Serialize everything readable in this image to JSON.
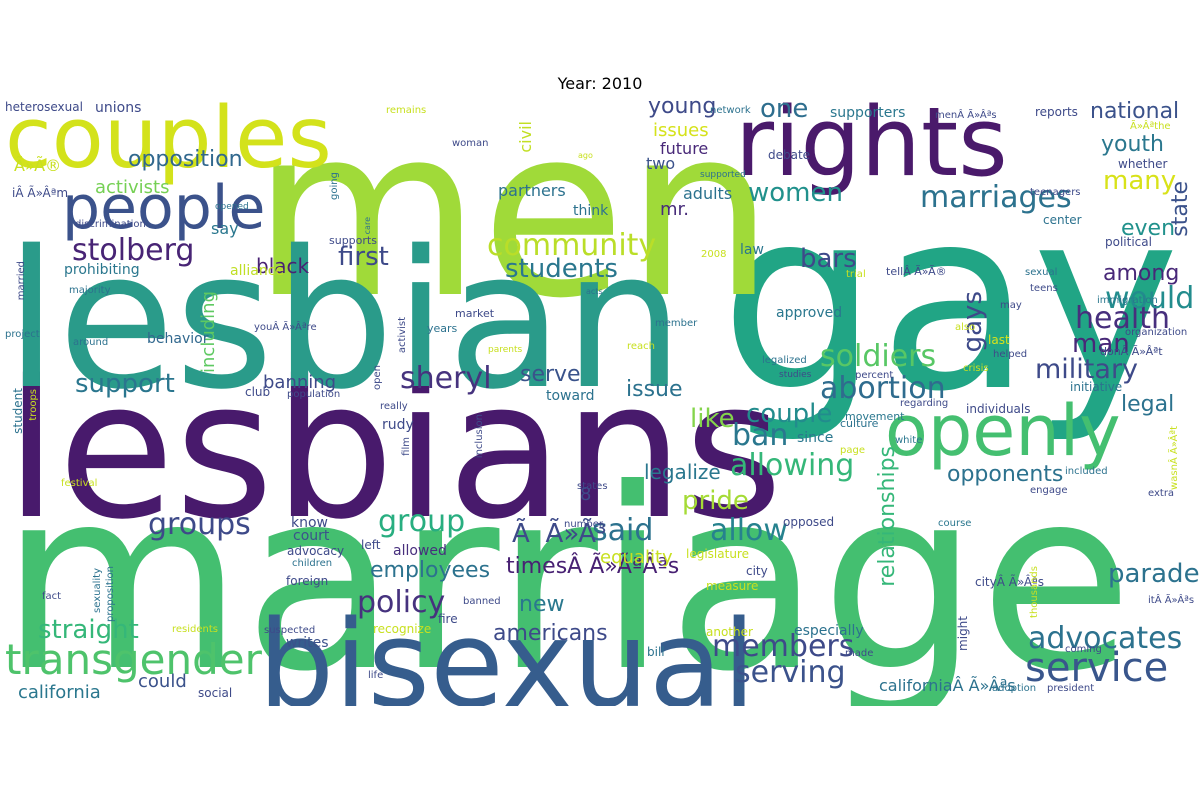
{
  "title": "Year: 2010",
  "words": [
    {
      "text": "gay",
      "color": "#21a585"
    },
    {
      "text": "marriage",
      "color": "#44bf70"
    },
    {
      "text": "men",
      "color": "#a0da39"
    },
    {
      "text": "lesbians",
      "color": "#481a6c"
    },
    {
      "text": "lesbian",
      "color": "#2a9b8a"
    },
    {
      "text": "bisexual",
      "color": "#365d8d"
    },
    {
      "text": "rights",
      "color": "#4a1a6b"
    },
    {
      "text": "couples",
      "color": "#d3e21b"
    },
    {
      "text": "openly",
      "color": "#44bf70"
    },
    {
      "text": "people",
      "color": "#3b528b"
    },
    {
      "text": "transgender",
      "color": "#4ec36b"
    },
    {
      "text": "service",
      "color": "#39568c"
    },
    {
      "text": "military",
      "color": "#3e4a89"
    },
    {
      "text": "abortion",
      "color": "#2f6c8e"
    },
    {
      "text": "sheryl",
      "color": "#46337e"
    },
    {
      "text": "stolberg",
      "color": "#482475"
    },
    {
      "text": "soldiers",
      "color": "#58c765"
    },
    {
      "text": "community",
      "color": "#bade28"
    },
    {
      "text": "marriages",
      "color": "#2c728e"
    },
    {
      "text": "health",
      "color": "#472f7d"
    },
    {
      "text": "advocates",
      "color": "#2c728e"
    },
    {
      "text": "members",
      "color": "#3e4a89"
    },
    {
      "text": "serving",
      "color": "#3b528b"
    },
    {
      "text": "policy",
      "color": "#46327e"
    },
    {
      "text": "allowing",
      "color": "#35b779"
    },
    {
      "text": "would",
      "color": "#228c8d"
    },
    {
      "text": "ban",
      "color": "#2a778e"
    },
    {
      "text": "allow",
      "color": "#26828e"
    },
    {
      "text": "said",
      "color": "#2c728e"
    },
    {
      "text": "group",
      "color": "#28ae80"
    },
    {
      "text": "groups",
      "color": "#3e4a89"
    },
    {
      "text": "straight",
      "color": "#35b779"
    },
    {
      "text": "support",
      "color": "#2a768e"
    },
    {
      "text": "first",
      "color": "#3e4a89"
    },
    {
      "text": "students",
      "color": "#2a778e"
    },
    {
      "text": "pride",
      "color": "#a5db36"
    },
    {
      "text": "parade",
      "color": "#2c728e"
    },
    {
      "text": "like",
      "color": "#84d44b"
    },
    {
      "text": "couple",
      "color": "#228c8d"
    },
    {
      "text": "man",
      "color": "#482878"
    },
    {
      "text": "gays",
      "color": "#3e4a89"
    },
    {
      "text": "bars",
      "color": "#3e4989"
    },
    {
      "text": "many",
      "color": "#d8e219"
    },
    {
      "text": "women",
      "color": "#21918c"
    },
    {
      "text": "one",
      "color": "#2e6e8e"
    },
    {
      "text": "opposition",
      "color": "#31688e"
    },
    {
      "text": "young",
      "color": "#3e4a89"
    },
    {
      "text": "serve",
      "color": "#3a538b"
    },
    {
      "text": "issue",
      "color": "#2c728e"
    },
    {
      "text": "americans",
      "color": "#3e4a89"
    },
    {
      "text": "employees",
      "color": "#2c728e"
    },
    {
      "text": "new",
      "color": "#2a788e"
    },
    {
      "text": "national",
      "color": "#3b528b"
    },
    {
      "text": "youth",
      "color": "#2a778e"
    },
    {
      "text": "among",
      "color": "#482878"
    },
    {
      "text": "even",
      "color": "#21918c"
    },
    {
      "text": "state",
      "color": "#3b528b"
    },
    {
      "text": "legal",
      "color": "#2c728e"
    },
    {
      "text": "relationships",
      "color": "#35b779"
    },
    {
      "text": "opponents",
      "color": "#2c728e"
    },
    {
      "text": "legalize",
      "color": "#2a778e"
    },
    {
      "text": "california",
      "color": "#2a778e"
    },
    {
      "text": "could",
      "color": "#3b528b"
    },
    {
      "text": "black",
      "color": "#482173"
    },
    {
      "text": "banning",
      "color": "#3e4a89"
    },
    {
      "text": "including",
      "color": "#5ec962"
    },
    {
      "text": "activists",
      "color": "#75d054"
    },
    {
      "text": "prohibiting",
      "color": "#2a778e"
    },
    {
      "text": "issues",
      "color": "#d5e21a"
    },
    {
      "text": "future",
      "color": "#482878"
    },
    {
      "text": "partners",
      "color": "#2c728e"
    },
    {
      "text": "mr.",
      "color": "#472c7a"
    },
    {
      "text": "timesÂ Ã»ÃªÂªs",
      "display": "timesÂ Ã»Âªs",
      "color": "#482173"
    },
    {
      "text": "ÃÃ»Ã³",
      "display": "Ã»Ã³",
      "color": "#3e4a89"
    },
    {
      "text": "8",
      "color": "#3e4a89"
    },
    {
      "text": "equality",
      "color": "#c8e020"
    },
    {
      "text": "californiaÂ Ã»Âªs",
      "color": "#2c728e"
    },
    {
      "text": "two",
      "color": "#3b528b"
    },
    {
      "text": "adults",
      "color": "#2c728e"
    },
    {
      "text": "say",
      "color": "#2a778e"
    },
    {
      "text": "alliance",
      "color": "#c0df25"
    },
    {
      "text": "behavior",
      "color": "#31688e"
    },
    {
      "text": "law",
      "color": "#2a778e"
    },
    {
      "text": "know",
      "color": "#3e4a89"
    },
    {
      "text": "court",
      "color": "#3b528b"
    },
    {
      "text": "allowed",
      "color": "#472f7d"
    },
    {
      "text": "writes",
      "color": "#3b528b"
    },
    {
      "text": "since",
      "color": "#2a778e"
    },
    {
      "text": "rudy",
      "color": "#3e4a89"
    },
    {
      "text": "toward",
      "color": "#2c728e"
    },
    {
      "text": "club",
      "color": "#3e4a89"
    },
    {
      "text": "social",
      "color": "#3e4a89"
    },
    {
      "text": "think",
      "color": "#2c728e"
    },
    {
      "text": "approved",
      "color": "#2a778e"
    },
    {
      "text": "especially",
      "color": "#2c728e"
    },
    {
      "text": "city",
      "color": "#3e4a89"
    },
    {
      "text": "civil",
      "color": "#c2df23"
    },
    {
      "text": "unions",
      "color": "#3e4a89"
    },
    {
      "text": "heterosexual",
      "color": "#3e4a89"
    },
    {
      "text": "supporters",
      "color": "#2a778e"
    },
    {
      "text": "debate",
      "color": "#3e4a89"
    },
    {
      "text": "whether",
      "color": "#3e4a89"
    },
    {
      "text": "reports",
      "color": "#3e4a89"
    },
    {
      "text": "network",
      "color": "#2c728e"
    },
    {
      "text": "political",
      "color": "#3e4a89"
    },
    {
      "text": "center",
      "color": "#2c728e"
    },
    {
      "text": "teenagers",
      "color": "#3e4a89"
    },
    {
      "text": "sexual",
      "color": "#2c728e"
    },
    {
      "text": "teens",
      "color": "#3e4a89"
    },
    {
      "text": "immigration",
      "color": "#2a778e"
    },
    {
      "text": "organization",
      "color": "#3e4a89"
    },
    {
      "text": "initiative",
      "color": "#2c728e"
    },
    {
      "text": "crisis",
      "color": "#c8e020"
    },
    {
      "text": "last",
      "color": "#d8e219"
    },
    {
      "text": "regarding",
      "color": "#3e4a89"
    },
    {
      "text": "individuals",
      "color": "#3e4a89"
    },
    {
      "text": "culture",
      "color": "#2c728e"
    },
    {
      "text": "movement",
      "color": "#2a778e"
    },
    {
      "text": "white",
      "color": "#2a778e"
    },
    {
      "text": "included",
      "color": "#2c728e"
    },
    {
      "text": "engage",
      "color": "#3e4a89"
    },
    {
      "text": "extra",
      "color": "#3e4a89"
    },
    {
      "text": "opposed",
      "color": "#3e4a89"
    },
    {
      "text": "legislature",
      "color": "#c8e020"
    },
    {
      "text": "measure",
      "color": "#c8e020"
    },
    {
      "text": "another",
      "color": "#c8e020"
    },
    {
      "text": "bill",
      "color": "#2c728e"
    },
    {
      "text": "made",
      "color": "#3e4a89"
    },
    {
      "text": "adoption",
      "color": "#2c728e"
    },
    {
      "text": "president",
      "color": "#3e4a89"
    },
    {
      "text": "coming",
      "color": "#3e4a89"
    },
    {
      "text": "might",
      "color": "#3e4a89"
    },
    {
      "text": "course",
      "color": "#2a778e"
    },
    {
      "text": "cityÂ Ã»Âªs",
      "color": "#3e4a89"
    },
    {
      "text": "thousands",
      "color": "#c8e020"
    },
    {
      "text": "itÂ Ã»Âªs",
      "color": "#3e4a89"
    },
    {
      "text": "recognize",
      "color": "#c8e020"
    },
    {
      "text": "residents",
      "color": "#c8e020"
    },
    {
      "text": "suspected",
      "color": "#3e4a89"
    },
    {
      "text": "fire",
      "color": "#3e4a89"
    },
    {
      "text": "banned",
      "color": "#3e4a89"
    },
    {
      "text": "number",
      "color": "#3e4a89"
    },
    {
      "text": "states",
      "color": "#3e4a89"
    },
    {
      "text": "advocacy",
      "color": "#3e4a89"
    },
    {
      "text": "left",
      "color": "#3e4a89"
    },
    {
      "text": "foreign",
      "color": "#3e4a89"
    },
    {
      "text": "children",
      "color": "#2c728e"
    },
    {
      "text": "fact",
      "color": "#3e4a89"
    },
    {
      "text": "proposition",
      "color": "#2c728e"
    },
    {
      "text": "sexuality",
      "color": "#2c728e"
    },
    {
      "text": "life",
      "color": "#3e4a89"
    },
    {
      "text": "student",
      "color": "#2c728e"
    },
    {
      "text": "troops",
      "color": "#c8e020"
    },
    {
      "text": "festival",
      "color": "#c8e020"
    },
    {
      "text": "married",
      "color": "#3e4a89"
    },
    {
      "text": "majority",
      "color": "#2c728e"
    },
    {
      "text": "project",
      "color": "#2c728e"
    },
    {
      "text": "around",
      "color": "#2c728e"
    },
    {
      "text": "discrimination",
      "color": "#3e4a89"
    },
    {
      "text": "opened",
      "color": "#2c728e"
    },
    {
      "text": "woman",
      "color": "#3e4a89"
    },
    {
      "text": "supported",
      "color": "#2c728e"
    },
    {
      "text": "remains",
      "color": "#c8e020"
    },
    {
      "text": "going",
      "color": "#2c728e"
    },
    {
      "text": "care",
      "color": "#2c728e"
    },
    {
      "text": "supports",
      "color": "#3e4a89"
    },
    {
      "text": "years",
      "color": "#2c728e"
    },
    {
      "text": "market",
      "color": "#3e4a89"
    },
    {
      "text": "parents",
      "color": "#c8e020"
    },
    {
      "text": "reach",
      "color": "#c8e020"
    },
    {
      "text": "percent",
      "color": "#3e4a89"
    },
    {
      "text": "member",
      "color": "#2c728e"
    },
    {
      "text": "acts",
      "color": "#2c728e"
    },
    {
      "text": "2008",
      "color": "#c8e020"
    },
    {
      "text": "trial",
      "color": "#c8e020"
    },
    {
      "text": "legalized",
      "color": "#2c728e"
    },
    {
      "text": "studies",
      "color": "#3e4a89"
    },
    {
      "text": "helped",
      "color": "#3e4a89"
    },
    {
      "text": "also",
      "color": "#c8e020"
    },
    {
      "text": "may",
      "color": "#3e4a89"
    },
    {
      "text": "population",
      "color": "#3e4a89"
    },
    {
      "text": "really",
      "color": "#3e4a89"
    },
    {
      "text": "inclusion",
      "color": "#3e4a89"
    },
    {
      "text": "film",
      "color": "#3e4a89"
    },
    {
      "text": "activist",
      "color": "#3e4a89"
    },
    {
      "text": "page",
      "color": "#c8e020"
    },
    {
      "text": "open",
      "color": "#3e4a89"
    },
    {
      "text": "ago",
      "color": "#c8e020"
    },
    {
      "text": "iÂ Ã»Âªm",
      "color": "#3e4a89"
    },
    {
      "text": "youÂ Ã»Âªre",
      "color": "#3e4a89"
    },
    {
      "text": "menÂ Ã»Âªs",
      "color": "#3e4a89"
    },
    {
      "text": "Ã»Âªthe",
      "color": "#c8e020"
    },
    {
      "text": "tellÂ Ã»Ã®",
      "color": "#3e4a89"
    },
    {
      "text": "donÂ Ã»Âªt",
      "color": "#3e4a89"
    },
    {
      "text": "wasnÂ Ã»Âªt",
      "color": "#c8e020"
    },
    {
      "text": "Ã»Ã®",
      "color": "#c8e020"
    }
  ]
}
